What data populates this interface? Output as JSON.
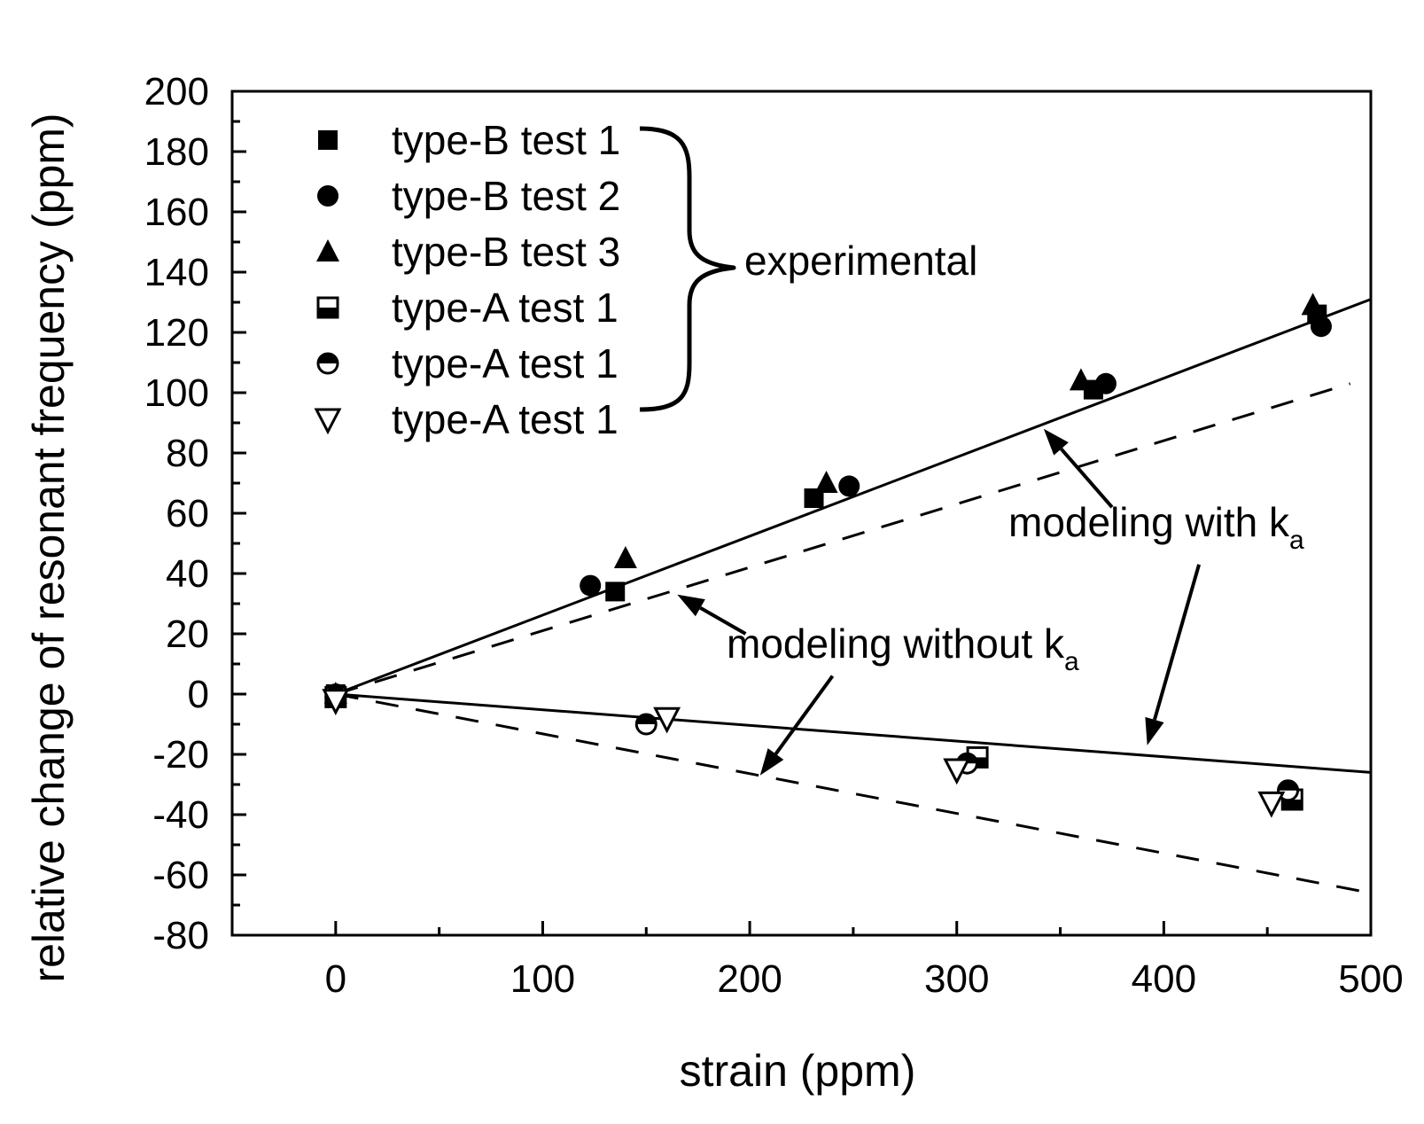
{
  "chart_data": {
    "type": "scatter",
    "xlabel": "strain (ppm)",
    "ylabel": "relative change of resonant frequency (ppm)",
    "xlim": [
      -50,
      500
    ],
    "ylim": [
      -80,
      200
    ],
    "x_ticks": [
      0,
      100,
      200,
      300,
      400,
      500
    ],
    "y_ticks": [
      200,
      180,
      160,
      140,
      120,
      100,
      80,
      60,
      40,
      20,
      0,
      -20,
      -40,
      -60,
      -80
    ],
    "series": [
      {
        "name": "type-B test 1",
        "marker": "square-filled",
        "points": [
          [
            0,
            0
          ],
          [
            135,
            34
          ],
          [
            231,
            65
          ],
          [
            366,
            101
          ],
          [
            474,
            126
          ]
        ]
      },
      {
        "name": "type-B test 2",
        "marker": "circle-filled",
        "points": [
          [
            0,
            0
          ],
          [
            123,
            36
          ],
          [
            248,
            69
          ],
          [
            372,
            103
          ],
          [
            476,
            122
          ]
        ]
      },
      {
        "name": "type-B test 3",
        "marker": "triangle-up-filled",
        "points": [
          [
            0,
            0
          ],
          [
            140,
            45
          ],
          [
            237,
            70
          ],
          [
            360,
            104
          ],
          [
            472,
            129
          ]
        ]
      },
      {
        "name": "type-A test 1",
        "marker": "square-half",
        "points": [
          [
            0,
            -1
          ],
          [
            310,
            -21
          ],
          [
            462,
            -35
          ]
        ]
      },
      {
        "name": "type-A test 1",
        "marker": "circle-half",
        "points": [
          [
            0,
            -1
          ],
          [
            150,
            -10
          ],
          [
            305,
            -23
          ],
          [
            460,
            -32
          ]
        ]
      },
      {
        "name": "type-A test 1",
        "marker": "triangle-down-open",
        "points": [
          [
            0,
            -2
          ],
          [
            160,
            -8
          ],
          [
            300,
            -25
          ],
          [
            452,
            -36
          ]
        ]
      }
    ],
    "lines": [
      {
        "name": "modeling with k_a (type-B)",
        "style": "solid",
        "x": [
          0,
          500
        ],
        "y": [
          0,
          131
        ]
      },
      {
        "name": "modeling without k_a (type-B)",
        "style": "dashed",
        "x": [
          0,
          490
        ],
        "y": [
          0,
          103
        ]
      },
      {
        "name": "modeling with k_a (type-A)",
        "style": "solid",
        "x": [
          0,
          500
        ],
        "y": [
          0,
          -26
        ]
      },
      {
        "name": "modeling without k_a (type-A)",
        "style": "dashed",
        "x": [
          0,
          500
        ],
        "y": [
          0,
          -66
        ]
      }
    ],
    "legend": {
      "position": "top-left",
      "entries": [
        "type-B test 1",
        "type-B test 2",
        "type-B test 3",
        "type-A test 1",
        "type-A test 1",
        "type-A test 1"
      ],
      "group_label": "experimental"
    },
    "annotations": {
      "with_ka": {
        "text": "modeling with k",
        "subscript": "a"
      },
      "without_ka": {
        "text": "modeling without k",
        "subscript": "a"
      }
    },
    "arrows": [
      {
        "from": [
          375,
          62
        ],
        "to": [
          342,
          88
        ]
      },
      {
        "from": [
          417,
          43
        ],
        "to": [
          392,
          -17
        ]
      },
      {
        "from": [
          198,
          20
        ],
        "to": [
          165,
          33
        ]
      },
      {
        "from": [
          240,
          6
        ],
        "to": [
          205,
          -27
        ]
      }
    ]
  }
}
